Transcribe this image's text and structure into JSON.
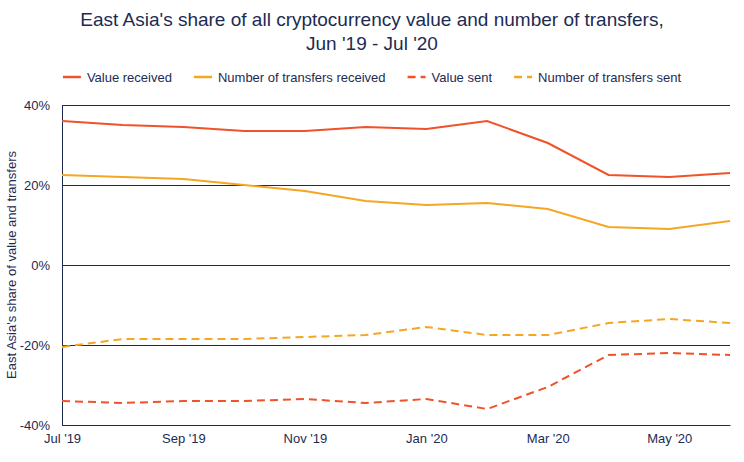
{
  "chart_data": {
    "type": "line",
    "title": "East Asia's share of all cryptocurrency value and number of transfers,",
    "subtitle": "Jun '19 - Jul '20",
    "y_label": "East Asia's share of value and transfers",
    "categories": [
      "Jul '19",
      null,
      "Sep '19",
      null,
      "Nov '19",
      null,
      "Jan '20",
      null,
      "Mar '20",
      null,
      "May '20",
      null
    ],
    "series": [
      {
        "name": "Value received",
        "color": "#f0522a",
        "line_style": "solid",
        "values": [
          36,
          35,
          34.5,
          33.5,
          33.5,
          34.5,
          34,
          36,
          30.5,
          22.5,
          22,
          23
        ]
      },
      {
        "name": "Number of transfers received",
        "color": "#f5a623",
        "line_style": "solid",
        "values": [
          22.5,
          22,
          21.5,
          20,
          18.5,
          16,
          15,
          15.5,
          14,
          9.5,
          9,
          11
        ]
      },
      {
        "name": "Value sent",
        "color": "#f0522a",
        "line_style": "dashed",
        "values": [
          -34,
          -34.5,
          -34,
          -34,
          -33.5,
          -34.5,
          -33.5,
          -36,
          -30.5,
          -22.5,
          -22,
          -22.5
        ]
      },
      {
        "name": "Number of transfers sent",
        "color": "#f5a623",
        "line_style": "dashed",
        "values": [
          -20.5,
          -18.5,
          -18.5,
          -18.5,
          -18,
          -17.5,
          -15.5,
          -17.5,
          -17.5,
          -14.5,
          -13.5,
          -14.5
        ]
      }
    ],
    "ylim": [
      -40,
      40
    ],
    "yticks": [
      {
        "value": 40,
        "label": "40%"
      },
      {
        "value": 20,
        "label": "20%"
      },
      {
        "value": 0,
        "label": "0%"
      },
      {
        "value": -20,
        "label": "-20%"
      },
      {
        "value": -40,
        "label": "-40%"
      }
    ],
    "grid": true,
    "legend": "top"
  }
}
